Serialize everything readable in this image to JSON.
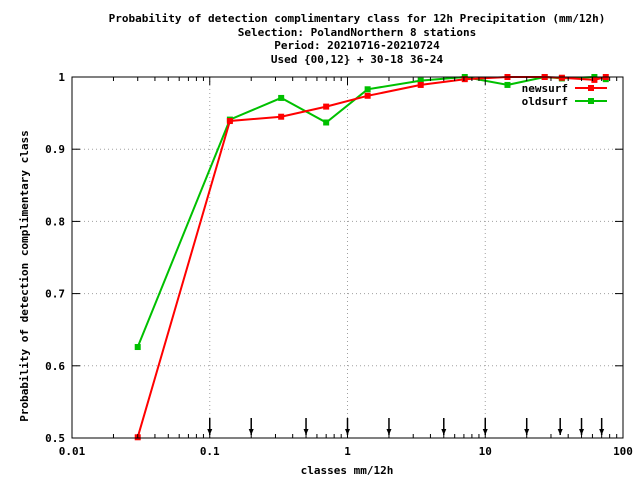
{
  "chart_data": {
    "type": "line",
    "title_lines": [
      "Probability of detection complimentary class  for 12h Precipitation (mm/12h)",
      "Selection: PolandNorthern      8 stations",
      "Period: 20210716-20210724",
      "Used {00,12} + 30-18 36-24"
    ],
    "xlabel": "classes mm/12h",
    "ylabel": "Probability of detection complimentary class",
    "xscale": "log",
    "xlim": [
      0.01,
      100
    ],
    "ylim": [
      0.5,
      1.0
    ],
    "x_ticks": [
      0.01,
      0.1,
      1,
      10,
      100
    ],
    "x_tick_labels": [
      "0.01",
      "0.1",
      "1",
      "10",
      "100"
    ],
    "y_ticks": [
      0.5,
      0.6,
      0.7,
      0.8,
      0.9,
      1.0
    ],
    "y_tick_labels": [
      "0.5",
      "0.6",
      "0.7",
      "0.8",
      "0.9",
      "1"
    ],
    "grid": true,
    "legend_position": "top-right",
    "class_markers": [
      0.1,
      0.2,
      0.5,
      1,
      2,
      5,
      10,
      20,
      35,
      50,
      70
    ],
    "series": [
      {
        "name": "newsurf",
        "color": "#ff0000",
        "x": [
          0.03,
          0.14,
          0.33,
          0.7,
          1.4,
          3.4,
          7.1,
          14.5,
          27,
          36,
          62,
          75
        ],
        "y": [
          0.501,
          0.939,
          0.945,
          0.959,
          0.974,
          0.989,
          0.997,
          1.0,
          1.0,
          0.999,
          0.996,
          1.0
        ]
      },
      {
        "name": "oldsurf",
        "color": "#00c000",
        "x": [
          0.03,
          0.14,
          0.33,
          0.7,
          1.4,
          3.4,
          7.1,
          14.5,
          27,
          36,
          62,
          75
        ],
        "y": [
          0.626,
          0.941,
          0.971,
          0.937,
          0.983,
          0.995,
          1.0,
          0.989,
          1.0,
          0.998,
          1.0,
          0.997
        ]
      }
    ]
  }
}
